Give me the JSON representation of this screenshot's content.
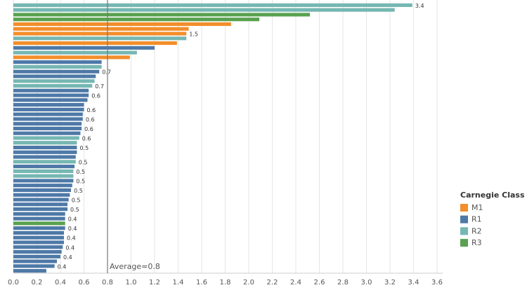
{
  "chart_data": {
    "type": "bar",
    "orientation": "horizontal",
    "categories": [
      null,
      null,
      null,
      null,
      null,
      null,
      null,
      null,
      null,
      null,
      null,
      null,
      null,
      null,
      null,
      null,
      null,
      null,
      null,
      null,
      null,
      null,
      null,
      null,
      null,
      null,
      null,
      null,
      null,
      null,
      null,
      null,
      null,
      null,
      null,
      null,
      null,
      null,
      null,
      null,
      null,
      null,
      null,
      null,
      null,
      null,
      null,
      null,
      null,
      null,
      null,
      null,
      null,
      null,
      null,
      null,
      null
    ],
    "series": [
      {
        "name": "M1",
        "color": "#f28e2b",
        "values": [
          null,
          null,
          null,
          null,
          1.85,
          1.49,
          1.47,
          null,
          1.39,
          null,
          null,
          0.99,
          null,
          null,
          null,
          null,
          null,
          null,
          null,
          null,
          null,
          null,
          null,
          null,
          null,
          null,
          null,
          null,
          null,
          null,
          null,
          null,
          null,
          null,
          null,
          null,
          null,
          null,
          null,
          null,
          null,
          null,
          null,
          null,
          null,
          null,
          null,
          null,
          null,
          null,
          null,
          null,
          null,
          null,
          null,
          null,
          null
        ]
      },
      {
        "name": "R1",
        "color": "#4e79a7",
        "values": [
          null,
          null,
          null,
          null,
          null,
          null,
          null,
          null,
          null,
          1.2,
          null,
          null,
          0.75,
          null,
          0.73,
          0.7,
          null,
          null,
          0.64,
          0.64,
          0.63,
          0.6,
          0.6,
          0.59,
          0.59,
          0.58,
          0.58,
          0.57,
          null,
          null,
          0.54,
          0.54,
          0.53,
          null,
          0.52,
          null,
          null,
          0.51,
          0.5,
          0.49,
          0.48,
          0.47,
          0.46,
          0.46,
          0.44,
          0.44,
          null,
          0.44,
          0.43,
          0.43,
          0.43,
          0.42,
          0.41,
          0.4,
          0.37,
          0.35,
          0.28
        ]
      },
      {
        "name": "R2",
        "color": "#76b7b2",
        "values": [
          3.39,
          3.24,
          null,
          null,
          null,
          null,
          null,
          1.47,
          null,
          null,
          1.05,
          null,
          null,
          0.75,
          null,
          null,
          0.69,
          0.67,
          null,
          null,
          null,
          null,
          null,
          null,
          null,
          null,
          null,
          null,
          0.56,
          0.54,
          null,
          null,
          null,
          0.53,
          null,
          0.51,
          0.51,
          null,
          null,
          null,
          null,
          null,
          null,
          null,
          null,
          null,
          null,
          null,
          null,
          null,
          null,
          null,
          null,
          null,
          null,
          null,
          null
        ]
      },
      {
        "name": "R3",
        "color": "#59a14f",
        "values": [
          null,
          null,
          2.52,
          2.09,
          null,
          null,
          null,
          null,
          null,
          null,
          null,
          null,
          null,
          null,
          null,
          null,
          null,
          null,
          null,
          null,
          null,
          null,
          null,
          null,
          null,
          null,
          null,
          null,
          null,
          null,
          null,
          null,
          null,
          null,
          null,
          null,
          null,
          null,
          null,
          null,
          null,
          null,
          null,
          null,
          null,
          null,
          0.44,
          null,
          null,
          null,
          null,
          null,
          null,
          null,
          null,
          null,
          null
        ]
      }
    ],
    "value_labels": [
      "3.4",
      null,
      null,
      null,
      null,
      null,
      "1.5",
      null,
      null,
      null,
      null,
      null,
      null,
      null,
      "0.7",
      null,
      null,
      "0.7",
      null,
      "0.6",
      null,
      null,
      "0.6",
      null,
      "0.6",
      null,
      "0.6",
      null,
      "0.6",
      null,
      "0.5",
      null,
      null,
      "0.5",
      null,
      "0.5",
      null,
      "0.5",
      null,
      "0.5",
      null,
      "0.5",
      null,
      "0.5",
      null,
      "0.4",
      null,
      "0.4",
      null,
      "0.4",
      null,
      "0.4",
      null,
      "0.4",
      null,
      "0.4",
      null
    ],
    "xlim": [
      0,
      3.65
    ],
    "xticks": [
      {
        "value": 0,
        "label": "0.0"
      },
      0.2,
      0.4,
      0.6,
      0.8,
      {
        "value": 1,
        "label": "1.0"
      },
      1.2,
      1.4,
      1.6,
      1.8,
      {
        "value": 2,
        "label": "2.0"
      },
      2.2,
      2.4,
      2.6,
      2.8,
      {
        "value": 3,
        "label": "3.0"
      },
      3.2,
      3.4,
      3.6
    ],
    "grid": true,
    "reference_line": {
      "value": 0.8,
      "label": "Average=0.8"
    },
    "legend_title": "Carnegie Class",
    "legend_position": "right"
  }
}
